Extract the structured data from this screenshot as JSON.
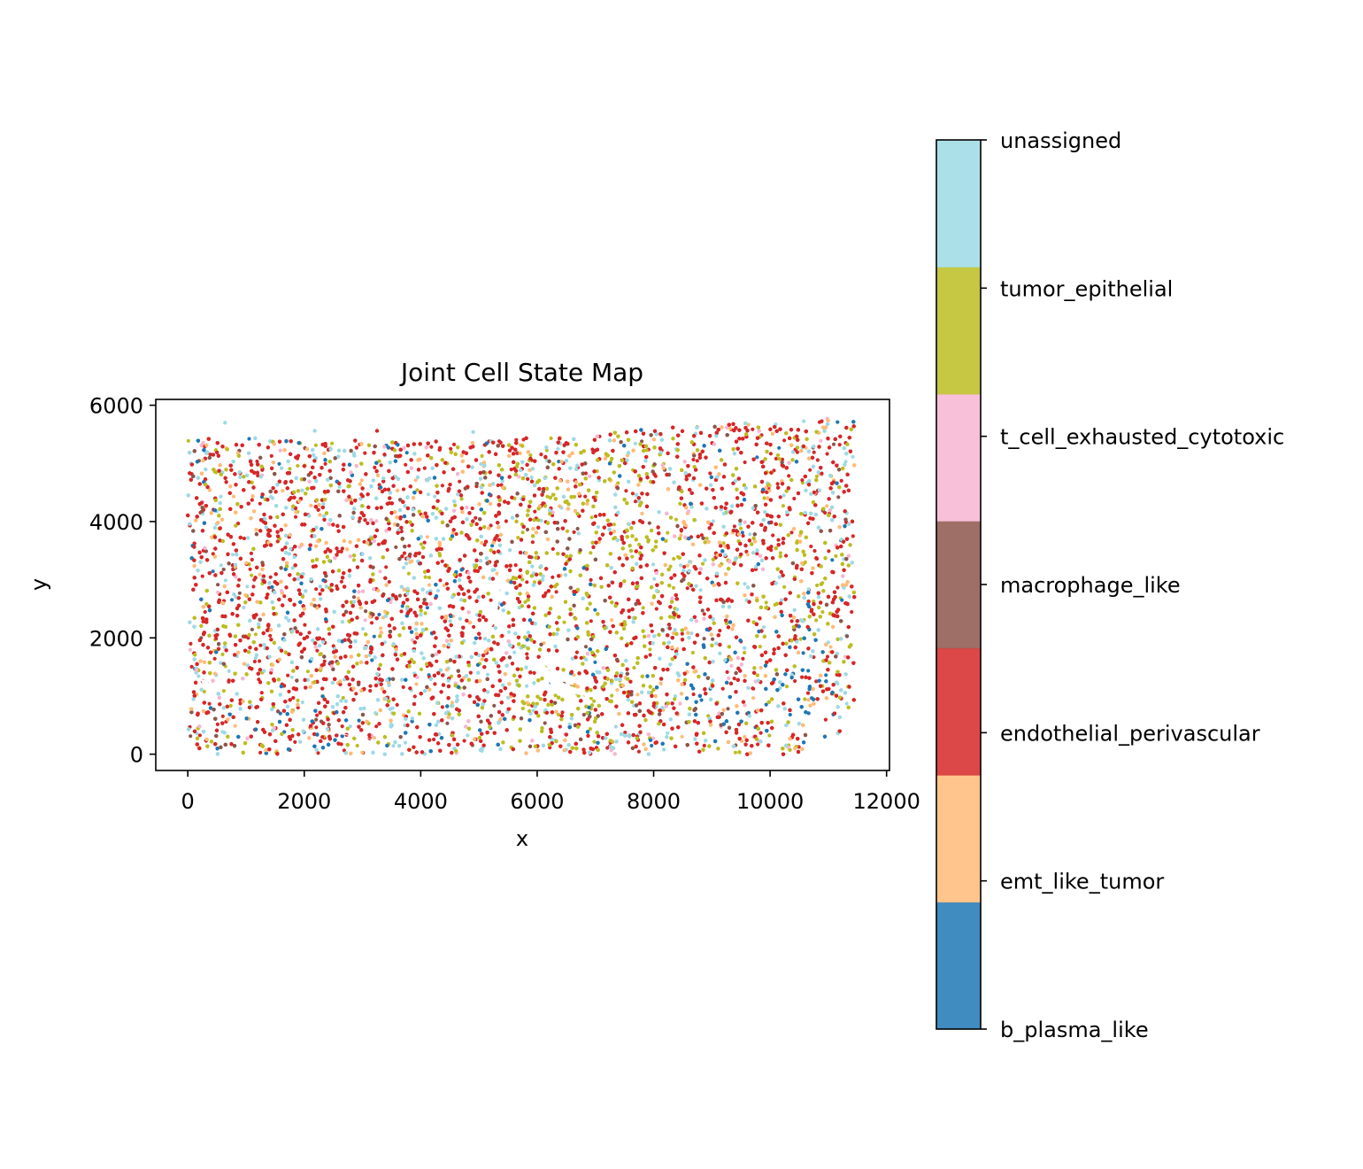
{
  "chart_data": {
    "type": "scatter",
    "title": "Joint Cell State Map",
    "xlabel": "x",
    "ylabel": "y",
    "xlim": [
      -550,
      12050
    ],
    "ylim": [
      -280,
      6100
    ],
    "x_ticks": [
      0,
      2000,
      4000,
      6000,
      8000,
      10000,
      12000
    ],
    "y_ticks": [
      0,
      2000,
      4000,
      6000
    ],
    "x_tick_labels": [
      "0",
      "2000",
      "4000",
      "6000",
      "8000",
      "10000",
      "12000"
    ],
    "y_tick_labels": [
      "0",
      "2000",
      "4000",
      "6000"
    ],
    "grid": false,
    "colorbar": {
      "position": "right",
      "categories": [
        "b_plasma_like",
        "emt_like_tumor",
        "endothelial_perivascular",
        "macrophage_like",
        "t_cell_exhausted_cytotoxic",
        "tumor_epithelial",
        "unassigned"
      ],
      "colors": [
        "#1f77b4",
        "#ffbb78",
        "#d62728",
        "#8c564b",
        "#f7b6d2",
        "#bcbd22",
        "#9edae5"
      ]
    },
    "series": [
      {
        "category": "endothelial_perivascular",
        "color": "#d62728",
        "approx_share": 0.46
      },
      {
        "category": "unassigned",
        "color": "#9edae5",
        "approx_share": 0.16
      },
      {
        "category": "tumor_epithelial",
        "color": "#bcbd22",
        "approx_share": 0.14
      },
      {
        "category": "emt_like_tumor",
        "color": "#ffbb78",
        "approx_share": 0.1
      },
      {
        "category": "macrophage_like",
        "color": "#8c564b",
        "approx_share": 0.06
      },
      {
        "category": "b_plasma_like",
        "color": "#1f77b4",
        "approx_share": 0.05
      },
      {
        "category": "t_cell_exhausted_cytotoxic",
        "color": "#f7b6d2",
        "approx_share": 0.03
      }
    ],
    "extent": {
      "x": [
        0,
        11450
      ],
      "y": [
        0,
        5800
      ]
    }
  }
}
